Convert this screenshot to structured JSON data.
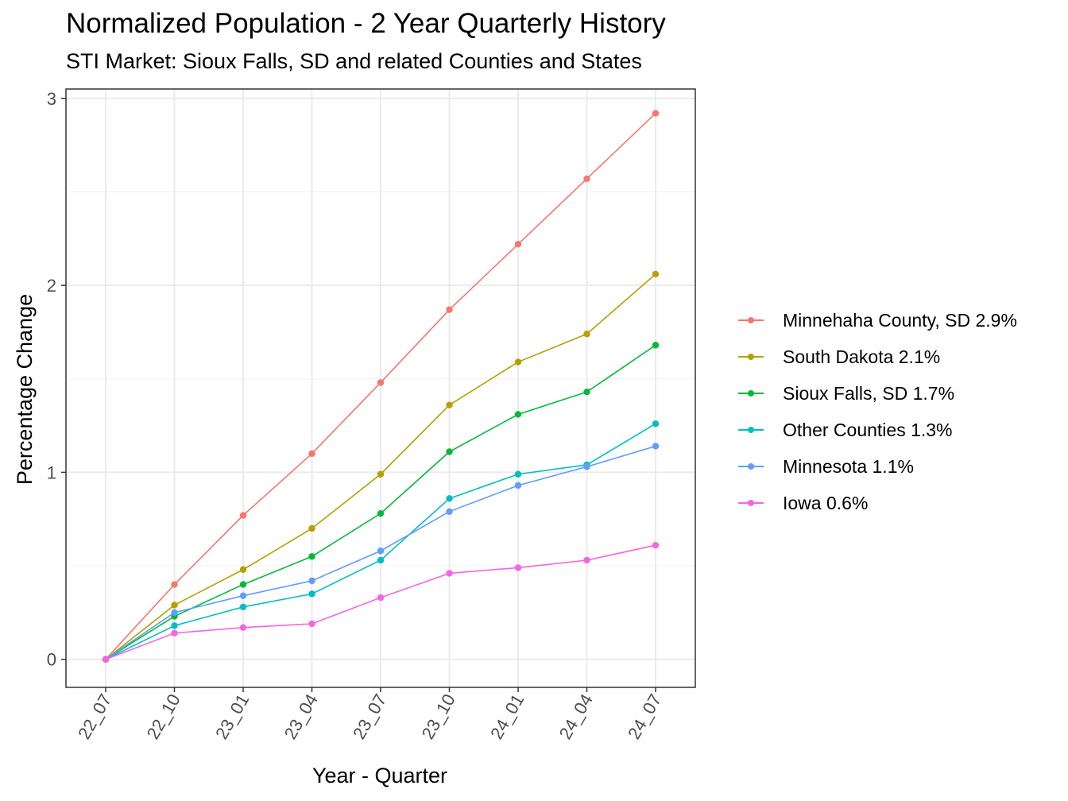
{
  "title": "Normalized Population - 2 Year Quarterly History",
  "subtitle": "STI Market: Sioux Falls, SD and related Counties and States",
  "chart_data": {
    "type": "line",
    "title": "Normalized Population - 2 Year Quarterly History",
    "subtitle": "STI Market: Sioux Falls, SD and related Counties and States",
    "xlabel": "Year - Quarter",
    "ylabel": "Percentage Change",
    "categories": [
      "22_07",
      "22_10",
      "23_01",
      "23_04",
      "23_07",
      "23_10",
      "24_01",
      "24_04",
      "24_07"
    ],
    "ylim": [
      -0.15,
      3.05
    ],
    "yticks": [
      0,
      1,
      2,
      3
    ],
    "grid": true,
    "legend_position": "right",
    "series": [
      {
        "name": "Minnehaha County, SD 2.9%",
        "color": "#F8766D",
        "values": [
          0,
          0.4,
          0.77,
          1.1,
          1.48,
          1.87,
          2.22,
          2.57,
          2.92
        ]
      },
      {
        "name": "South Dakota 2.1%",
        "color": "#B79F00",
        "values": [
          0,
          0.29,
          0.48,
          0.7,
          0.99,
          1.36,
          1.59,
          1.74,
          2.06
        ]
      },
      {
        "name": "Sioux Falls, SD 1.7%",
        "color": "#00BA38",
        "values": [
          0,
          0.23,
          0.4,
          0.55,
          0.78,
          1.11,
          1.31,
          1.43,
          1.68
        ]
      },
      {
        "name": "Other Counties 1.3%",
        "color": "#00BFC4",
        "values": [
          0,
          0.18,
          0.28,
          0.35,
          0.53,
          0.86,
          0.99,
          1.04,
          1.26
        ]
      },
      {
        "name": "Minnesota 1.1%",
        "color": "#619CFF",
        "values": [
          0,
          0.25,
          0.34,
          0.42,
          0.58,
          0.79,
          0.93,
          1.03,
          1.14
        ]
      },
      {
        "name": "Iowa 0.6%",
        "color": "#F564E3",
        "values": [
          0,
          0.14,
          0.17,
          0.19,
          0.33,
          0.46,
          0.49,
          0.53,
          0.61
        ]
      }
    ]
  }
}
